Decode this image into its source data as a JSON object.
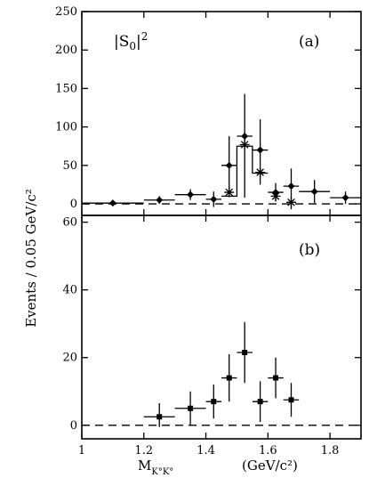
{
  "chart_data": [
    {
      "type": "scatter",
      "panel_label": "(a)",
      "annotation": "|S",
      "annotation_sub": "0",
      "annotation_sup": "2",
      "ylabel": "Events / 0.05 GeV/c²",
      "xlim": [
        1.0,
        1.9
      ],
      "ylim": [
        -15,
        250
      ],
      "xticks": [
        1,
        1.2,
        1.4,
        1.6,
        1.8
      ],
      "yticks": [
        0,
        50,
        100,
        150,
        200,
        250
      ],
      "series": [
        {
          "marker": "diamond",
          "points": [
            {
              "x": 1.1,
              "y": 1,
              "xerr": 0.1,
              "yerr": [
                3,
                3
              ]
            },
            {
              "x": 1.25,
              "y": 5,
              "xerr": 0.05,
              "yerr": [
                5,
                5
              ]
            },
            {
              "x": 1.35,
              "y": 12,
              "xerr": 0.05,
              "yerr": [
                7,
                7
              ]
            },
            {
              "x": 1.425,
              "y": 6,
              "xerr": 0.025,
              "yerr": [
                10,
                10
              ]
            },
            {
              "x": 1.475,
              "y": 50,
              "xerr": 0.025,
              "yerr": [
                38,
                38
              ]
            },
            {
              "x": 1.525,
              "y": 88,
              "xerr": 0.025,
              "yerr": [
                80,
                55
              ]
            },
            {
              "x": 1.575,
              "y": 70,
              "xerr": 0.025,
              "yerr": [
                45,
                40
              ]
            },
            {
              "x": 1.625,
              "y": 15,
              "xerr": 0.025,
              "yerr": [
                12,
                12
              ]
            },
            {
              "x": 1.675,
              "y": 23,
              "xerr": 0.025,
              "yerr": [
                30,
                23
              ]
            },
            {
              "x": 1.75,
              "y": 16,
              "xerr": 0.05,
              "yerr": [
                15,
                15
              ]
            },
            {
              "x": 1.85,
              "y": 8,
              "xerr": 0.05,
              "yerr": [
                8,
                8
              ]
            }
          ]
        },
        {
          "marker": "star",
          "points": [
            {
              "x": 1.475,
              "y": 15
            },
            {
              "x": 1.525,
              "y": 77
            },
            {
              "x": 1.575,
              "y": 41
            },
            {
              "x": 1.625,
              "y": 10
            },
            {
              "x": 1.675,
              "y": 2
            }
          ]
        }
      ],
      "histogram": {
        "edges": [
          1.45,
          1.5,
          1.55,
          1.6
        ],
        "values": [
          10,
          75,
          40
        ]
      },
      "dashed_baseline": 0
    },
    {
      "type": "scatter",
      "panel_label": "(b)",
      "xlabel_main": "M",
      "xlabel_sub": "K°K°",
      "xlabel_unit": "(GeV/c²)",
      "xlim": [
        1.0,
        1.9
      ],
      "ylim": [
        -4,
        62
      ],
      "xticks": [
        1,
        1.2,
        1.4,
        1.6,
        1.8
      ],
      "xtick_labels": [
        "1",
        "1.2",
        "1.4",
        "1.6",
        "1.8"
      ],
      "yticks": [
        0,
        20,
        40,
        60
      ],
      "series": [
        {
          "marker": "square",
          "points": [
            {
              "x": 1.25,
              "y": 2.5,
              "xerr": 0.05,
              "yerr": [
                3,
                4
              ]
            },
            {
              "x": 1.35,
              "y": 5,
              "xerr": 0.05,
              "yerr": [
                5,
                5
              ]
            },
            {
              "x": 1.425,
              "y": 7,
              "xerr": 0.025,
              "yerr": [
                5,
                5
              ]
            },
            {
              "x": 1.475,
              "y": 14,
              "xerr": 0.025,
              "yerr": [
                7,
                7
              ]
            },
            {
              "x": 1.525,
              "y": 21.5,
              "xerr": 0.025,
              "yerr": [
                9,
                9
              ]
            },
            {
              "x": 1.575,
              "y": 7,
              "xerr": 0.025,
              "yerr": [
                6,
                6
              ]
            },
            {
              "x": 1.625,
              "y": 14,
              "xerr": 0.025,
              "yerr": [
                6,
                6
              ]
            },
            {
              "x": 1.675,
              "y": 7.5,
              "xerr": 0.025,
              "yerr": [
                5,
                5
              ]
            }
          ]
        }
      ],
      "dashed_baseline": 0
    }
  ]
}
